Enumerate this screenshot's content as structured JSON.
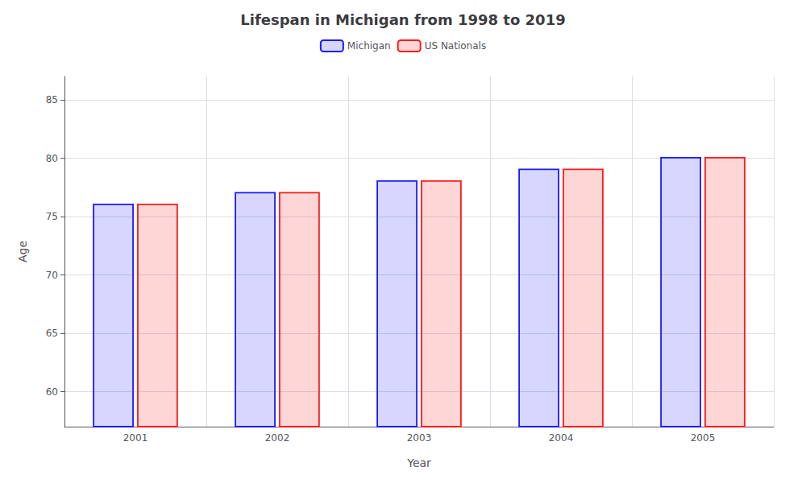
{
  "chart_data": {
    "type": "bar",
    "title": "Lifespan in Michigan from 1998 to 2019",
    "xlabel": "Year",
    "ylabel": "Age",
    "categories": [
      "2001",
      "2002",
      "2003",
      "2004",
      "2005"
    ],
    "series": [
      {
        "name": "Michigan",
        "color": "#1a1aff",
        "values": [
          76.1,
          77.1,
          78.1,
          79.1,
          80.1
        ]
      },
      {
        "name": "US Nationals",
        "color": "#ff1a1a",
        "values": [
          76.1,
          77.1,
          78.1,
          79.1,
          80.1
        ]
      }
    ],
    "ylim": [
      57,
      87
    ],
    "yticks": [
      60,
      65,
      70,
      75,
      80,
      85
    ],
    "grid": true,
    "legend": "top"
  }
}
